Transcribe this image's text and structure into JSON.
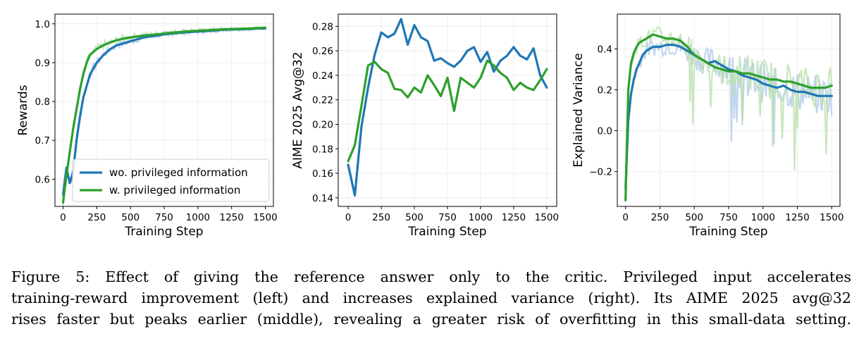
{
  "colors": {
    "blue": "#1f77b4",
    "green": "#2ca02c",
    "blue_light": "#aec7e8",
    "green_light": "#b5dfa8"
  },
  "caption": {
    "line1": "Figure 5: Effect of giving the reference answer only to the critic. Privileged input accelerates",
    "line2": "training-reward improvement (left) and increases explained variance (right). Its AIME 2025 avg@32",
    "line3": "rises faster but peaks earlier (middle), revealing a greater risk of overfitting in this small-data setting."
  },
  "chart_data": [
    {
      "type": "line",
      "xlabel": "Training Step",
      "ylabel": "Rewards",
      "xlim": [
        -60,
        1560
      ],
      "ylim": [
        0.53,
        1.025
      ],
      "xticks": [
        0,
        250,
        500,
        750,
        1000,
        1250,
        1500
      ],
      "yticks": [
        0.6,
        0.7,
        0.8,
        0.9,
        1.0
      ],
      "grid": true,
      "legend": "lower-right",
      "series": [
        {
          "name": "wo. privileged information",
          "color": "blue",
          "x": [
            0,
            25,
            50,
            75,
            100,
            125,
            150,
            175,
            200,
            250,
            300,
            350,
            400,
            450,
            500,
            600,
            700,
            800,
            900,
            1000,
            1100,
            1200,
            1300,
            1400,
            1450,
            1500
          ],
          "y": [
            0.56,
            0.63,
            0.59,
            0.62,
            0.7,
            0.76,
            0.81,
            0.84,
            0.87,
            0.9,
            0.92,
            0.935,
            0.945,
            0.95,
            0.955,
            0.965,
            0.97,
            0.975,
            0.978,
            0.98,
            0.982,
            0.985,
            0.986,
            0.987,
            0.988,
            0.988
          ]
        },
        {
          "name": "w. privileged information",
          "color": "green",
          "x": [
            0,
            25,
            50,
            75,
            100,
            125,
            150,
            175,
            200,
            250,
            300,
            350,
            400,
            450,
            500,
            600,
            700,
            800,
            900,
            1000,
            1100,
            1200,
            1300,
            1400,
            1450,
            1500
          ],
          "y": [
            0.54,
            0.61,
            0.67,
            0.73,
            0.78,
            0.83,
            0.87,
            0.9,
            0.92,
            0.935,
            0.945,
            0.952,
            0.958,
            0.962,
            0.965,
            0.97,
            0.973,
            0.977,
            0.98,
            0.982,
            0.984,
            0.986,
            0.987,
            0.988,
            0.989,
            0.99
          ]
        }
      ]
    },
    {
      "type": "line",
      "xlabel": "Training Step",
      "ylabel": "AIME 2025 Avg@32",
      "xlim": [
        -75,
        1575
      ],
      "ylim": [
        0.133,
        0.29
      ],
      "xticks": [
        0,
        250,
        500,
        750,
        1000,
        1250,
        1500
      ],
      "yticks": [
        0.14,
        0.16,
        0.18,
        0.2,
        0.22,
        0.24,
        0.26,
        0.28
      ],
      "grid": true,
      "series": [
        {
          "name": "wo. privileged information",
          "color": "blue",
          "x": [
            0,
            50,
            100,
            150,
            200,
            250,
            300,
            350,
            400,
            450,
            500,
            550,
            600,
            650,
            700,
            750,
            800,
            850,
            900,
            950,
            1000,
            1050,
            1100,
            1150,
            1200,
            1250,
            1300,
            1350,
            1400,
            1450,
            1500
          ],
          "y": [
            0.167,
            0.142,
            0.198,
            0.23,
            0.257,
            0.275,
            0.271,
            0.274,
            0.286,
            0.265,
            0.281,
            0.271,
            0.268,
            0.252,
            0.254,
            0.25,
            0.247,
            0.252,
            0.26,
            0.263,
            0.251,
            0.259,
            0.243,
            0.252,
            0.256,
            0.263,
            0.256,
            0.253,
            0.262,
            0.24,
            0.23
          ]
        },
        {
          "name": "w. privileged information",
          "color": "green",
          "x": [
            0,
            50,
            100,
            150,
            200,
            250,
            300,
            350,
            400,
            450,
            500,
            550,
            600,
            650,
            700,
            750,
            800,
            850,
            900,
            950,
            1000,
            1050,
            1100,
            1150,
            1200,
            1250,
            1300,
            1350,
            1400,
            1450,
            1500
          ],
          "y": [
            0.17,
            0.183,
            0.215,
            0.248,
            0.251,
            0.245,
            0.242,
            0.229,
            0.228,
            0.222,
            0.23,
            0.226,
            0.24,
            0.232,
            0.223,
            0.238,
            0.211,
            0.238,
            0.234,
            0.23,
            0.238,
            0.252,
            0.248,
            0.242,
            0.238,
            0.228,
            0.234,
            0.23,
            0.228,
            0.236,
            0.245
          ]
        }
      ]
    },
    {
      "type": "line",
      "xlabel": "Training Step",
      "ylabel": "Explained Variance",
      "xlim": [
        -60,
        1560
      ],
      "ylim": [
        -0.37,
        0.57
      ],
      "xticks": [
        0,
        250,
        500,
        750,
        1000,
        1250,
        1500
      ],
      "yticks": [
        -0.2,
        0.0,
        0.2,
        0.4
      ],
      "grid": true,
      "series": [
        {
          "name": "wo. privileged information",
          "color": "blue",
          "x": [
            0,
            20,
            40,
            60,
            80,
            100,
            125,
            150,
            175,
            200,
            250,
            300,
            350,
            400,
            450,
            500,
            550,
            600,
            650,
            700,
            750,
            800,
            850,
            900,
            950,
            1000,
            1050,
            1100,
            1150,
            1200,
            1250,
            1300,
            1350,
            1400,
            1450,
            1500
          ],
          "y": [
            -0.28,
            0.05,
            0.18,
            0.25,
            0.3,
            0.33,
            0.37,
            0.39,
            0.4,
            0.41,
            0.41,
            0.42,
            0.42,
            0.41,
            0.39,
            0.37,
            0.35,
            0.33,
            0.34,
            0.32,
            0.3,
            0.29,
            0.27,
            0.26,
            0.25,
            0.23,
            0.22,
            0.21,
            0.22,
            0.2,
            0.19,
            0.19,
            0.18,
            0.17,
            0.17,
            0.17
          ]
        },
        {
          "name": "w. privileged information",
          "color": "green",
          "x": [
            0,
            20,
            40,
            60,
            80,
            100,
            125,
            150,
            175,
            200,
            250,
            300,
            350,
            400,
            450,
            500,
            550,
            600,
            650,
            700,
            750,
            800,
            850,
            900,
            950,
            1000,
            1050,
            1100,
            1150,
            1200,
            1250,
            1300,
            1350,
            1400,
            1450,
            1500
          ],
          "y": [
            -0.34,
            0.2,
            0.33,
            0.38,
            0.41,
            0.43,
            0.44,
            0.45,
            0.46,
            0.47,
            0.46,
            0.45,
            0.45,
            0.44,
            0.41,
            0.37,
            0.35,
            0.33,
            0.31,
            0.3,
            0.29,
            0.29,
            0.28,
            0.28,
            0.27,
            0.26,
            0.25,
            0.25,
            0.24,
            0.24,
            0.23,
            0.22,
            0.21,
            0.21,
            0.21,
            0.22
          ]
        }
      ]
    }
  ]
}
